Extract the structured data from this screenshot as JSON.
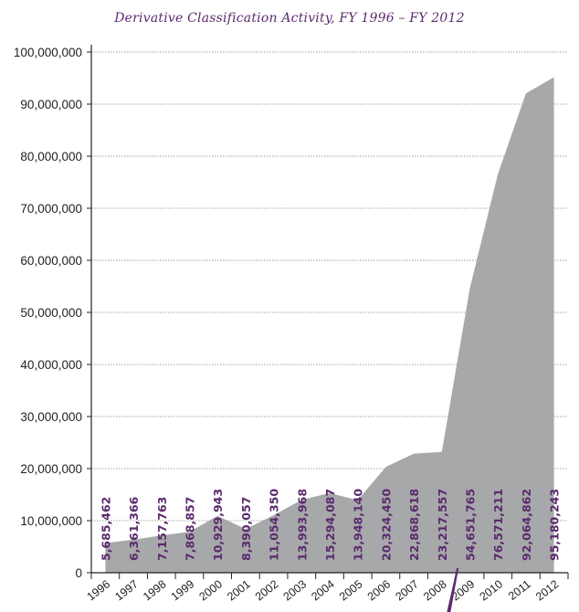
{
  "chart_data": {
    "type": "area",
    "title": "Derivative Classification Activity, FY 1996 – FY 2012",
    "xlabel": "",
    "ylabel": "",
    "ylim": [
      0,
      100000000
    ],
    "y_ticks": [
      0,
      10000000,
      20000000,
      30000000,
      40000000,
      50000000,
      60000000,
      70000000,
      80000000,
      90000000,
      100000000
    ],
    "y_tick_labels": [
      "0",
      "10,000,000",
      "20,000,000",
      "30,000,000",
      "40,000,000",
      "50,000,000",
      "60,000,000",
      "70,000,000",
      "80,000,000",
      "90,000,000",
      "100,000,000"
    ],
    "categories": [
      "1996",
      "1997",
      "1998",
      "1999",
      "2000",
      "2001",
      "2002",
      "2003",
      "2004",
      "2005",
      "2006",
      "2007",
      "2008",
      "2009",
      "2010",
      "2011",
      "2012"
    ],
    "values": [
      5685462,
      6361366,
      7157763,
      7868857,
      10929943,
      8390057,
      11054350,
      13993968,
      15294087,
      13948140,
      20324450,
      22868618,
      23217557,
      54651765,
      76571211,
      92064862,
      95180243
    ],
    "value_labels": [
      "5,685,462",
      "6,361,366",
      "7,157,763",
      "7,868,857",
      "10,929,943",
      "8,390,057",
      "11,054,350",
      "13,993,968",
      "15,294,087",
      "13,948,140",
      "20,324,450",
      "22,868,618",
      "23,217,557",
      "54,651,765",
      "76,571,211",
      "92,064,862",
      "95,180,243"
    ],
    "grid": true,
    "break_after_category": "2008"
  },
  "colors": {
    "area_fill": "#a7a8aa",
    "label_color": "#5b2a6e",
    "title_color": "#5b2a6e",
    "axis_color": "#222222",
    "grid_color": "#888888"
  }
}
